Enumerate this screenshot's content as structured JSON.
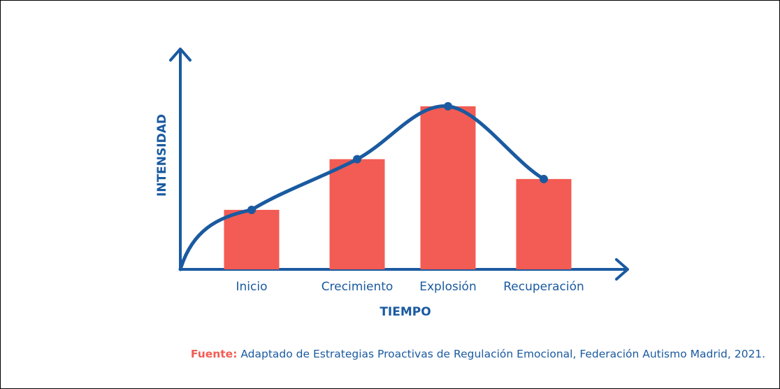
{
  "chart_data": {
    "type": "bar",
    "x_label": "TIEMPO",
    "y_label": "INTENSIDAD",
    "categories": [
      "Inicio",
      "Crecimiento",
      "Explosión",
      "Recuperación"
    ],
    "values": [
      27,
      50,
      74,
      41
    ],
    "color": "#f25c54",
    "line_color": "#1a5aa0",
    "ylim": [
      0,
      100
    ],
    "source_label": "Fuente:",
    "source": "Adaptado de Estrategias Proactivas de Regulación Emocional, Federación Autismo Madrid, 2021."
  }
}
